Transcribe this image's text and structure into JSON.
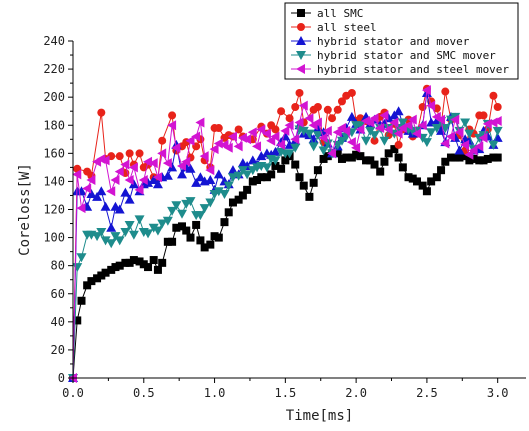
{
  "chart_data": {
    "type": "line",
    "title": "",
    "xlabel": "Time[ms]",
    "ylabel": "Coreloss[W]",
    "xlim": [
      0,
      3.2
    ],
    "ylim": [
      0,
      240
    ],
    "xticks": [
      "0.0",
      "0.5",
      "1.0",
      "1.5",
      "2.0",
      "2.5",
      "3.0"
    ],
    "yticks": [
      "0",
      "20",
      "40",
      "60",
      "80",
      "100",
      "120",
      "140",
      "160",
      "180",
      "200",
      "220",
      "240"
    ],
    "grid": false,
    "legend_position": "top-right",
    "series": [
      {
        "name": "all SMC",
        "color": "#000000",
        "marker": "square",
        "x": [
          0.0,
          0.03,
          0.06,
          0.1,
          0.13,
          0.17,
          0.2,
          0.23,
          0.27,
          0.3,
          0.33,
          0.37,
          0.4,
          0.43,
          0.47,
          0.5,
          0.53,
          0.57,
          0.6,
          0.63,
          0.67,
          0.7,
          0.73,
          0.77,
          0.8,
          0.83,
          0.87,
          0.9,
          0.93,
          0.97,
          1.0,
          1.03,
          1.07,
          1.1,
          1.13,
          1.17,
          1.2,
          1.23,
          1.27,
          1.3,
          1.33,
          1.37,
          1.4,
          1.43,
          1.47,
          1.5,
          1.53,
          1.57,
          1.6,
          1.63,
          1.67,
          1.7,
          1.73,
          1.77,
          1.8,
          1.83,
          1.87,
          1.9,
          1.93,
          1.97,
          2.0,
          2.03,
          2.07,
          2.1,
          2.13,
          2.17,
          2.2,
          2.23,
          2.27,
          2.3,
          2.33,
          2.37,
          2.4,
          2.43,
          2.47,
          2.5,
          2.53,
          2.57,
          2.6,
          2.63,
          2.67,
          2.7,
          2.73,
          2.77,
          2.8,
          2.83,
          2.87,
          2.9,
          2.93,
          2.97,
          3.0
        ],
        "y": [
          0,
          41,
          55,
          66,
          69,
          71,
          73,
          75,
          77,
          79,
          80,
          82,
          82,
          84,
          83,
          81,
          79,
          84,
          77,
          82,
          97,
          97,
          107,
          108,
          105,
          100,
          109,
          98,
          93,
          95,
          101,
          100,
          111,
          118,
          125,
          127,
          130,
          134,
          140,
          141,
          143,
          143,
          145,
          151,
          149,
          155,
          158,
          152,
          143,
          137,
          129,
          139,
          148,
          156,
          158,
          160,
          160,
          156,
          157,
          157,
          159,
          158,
          155,
          155,
          152,
          147,
          154,
          160,
          163,
          157,
          150,
          143,
          142,
          140,
          137,
          133,
          140,
          143,
          148,
          154,
          157,
          157,
          157,
          158,
          155,
          156,
          155,
          155,
          156,
          157,
          157
        ]
      },
      {
        "name": "all steel",
        "color": "#e8231a",
        "marker": "circle",
        "x": [
          0.0,
          0.03,
          0.1,
          0.13,
          0.2,
          0.23,
          0.27,
          0.33,
          0.37,
          0.4,
          0.43,
          0.47,
          0.5,
          0.53,
          0.57,
          0.6,
          0.63,
          0.7,
          0.73,
          0.77,
          0.8,
          0.83,
          0.87,
          0.9,
          0.93,
          0.97,
          1.0,
          1.03,
          1.07,
          1.1,
          1.13,
          1.17,
          1.2,
          1.27,
          1.33,
          1.37,
          1.4,
          1.43,
          1.47,
          1.53,
          1.57,
          1.6,
          1.63,
          1.7,
          1.73,
          1.77,
          1.8,
          1.83,
          1.87,
          1.9,
          1.93,
          1.97,
          2.0,
          2.03,
          2.07,
          2.1,
          2.13,
          2.17,
          2.2,
          2.23,
          2.27,
          2.3,
          2.33,
          2.37,
          2.4,
          2.43,
          2.47,
          2.5,
          2.53,
          2.57,
          2.6,
          2.63,
          2.67,
          2.7,
          2.73,
          2.77,
          2.8,
          2.83,
          2.87,
          2.9,
          2.93,
          2.97,
          3.0
        ],
        "y": [
          0,
          149,
          147,
          144,
          189,
          156,
          158,
          158,
          146,
          160,
          152,
          160,
          150,
          152,
          143,
          142,
          169,
          187,
          162,
          165,
          168,
          157,
          165,
          170,
          155,
          150,
          178,
          178,
          171,
          173,
          172,
          177,
          172,
          170,
          179,
          174,
          180,
          177,
          190,
          185,
          193,
          203,
          182,
          191,
          193,
          168,
          191,
          185,
          191,
          197,
          201,
          203,
          183,
          185,
          183,
          181,
          169,
          186,
          189,
          173,
          181,
          166,
          177,
          184,
          172,
          174,
          193,
          206,
          197,
          192,
          180,
          204,
          184,
          186,
          173,
          162,
          177,
          174,
          187,
          187,
          177,
          201,
          193
        ]
      },
      {
        "name": "hybrid stator and mover",
        "color": "#1414d2",
        "marker": "triangle-up",
        "x": [
          0.0,
          0.03,
          0.06,
          0.1,
          0.13,
          0.17,
          0.2,
          0.23,
          0.27,
          0.3,
          0.33,
          0.37,
          0.4,
          0.43,
          0.47,
          0.5,
          0.53,
          0.57,
          0.6,
          0.63,
          0.67,
          0.7,
          0.73,
          0.77,
          0.8,
          0.83,
          0.87,
          0.9,
          0.93,
          0.97,
          1.0,
          1.03,
          1.07,
          1.1,
          1.13,
          1.17,
          1.2,
          1.23,
          1.27,
          1.3,
          1.33,
          1.37,
          1.4,
          1.43,
          1.47,
          1.5,
          1.53,
          1.57,
          1.6,
          1.63,
          1.67,
          1.7,
          1.73,
          1.77,
          1.8,
          1.83,
          1.87,
          1.9,
          1.93,
          1.97,
          2.0,
          2.03,
          2.07,
          2.1,
          2.13,
          2.17,
          2.2,
          2.23,
          2.27,
          2.3,
          2.33,
          2.37,
          2.4,
          2.43,
          2.47,
          2.5,
          2.53,
          2.57,
          2.6,
          2.63,
          2.67,
          2.7,
          2.73,
          2.77,
          2.8,
          2.83,
          2.87,
          2.9,
          2.93,
          2.97,
          3.0
        ],
        "y": [
          0,
          133,
          133,
          122,
          131,
          129,
          133,
          122,
          107,
          122,
          120,
          132,
          127,
          138,
          133,
          138,
          139,
          141,
          138,
          143,
          144,
          150,
          166,
          145,
          150,
          149,
          139,
          143,
          140,
          141,
          134,
          145,
          140,
          138,
          148,
          145,
          153,
          151,
          155,
          152,
          158,
          160,
          159,
          161,
          168,
          172,
          166,
          169,
          180,
          174,
          173,
          170,
          178,
          175,
          167,
          160,
          165,
          171,
          178,
          186,
          181,
          177,
          186,
          181,
          184,
          180,
          181,
          185,
          187,
          190,
          181,
          176,
          174,
          176,
          180,
          203,
          182,
          183,
          176,
          168,
          186,
          171,
          162,
          170,
          169,
          162,
          163,
          176,
          172,
          166,
          171
        ]
      },
      {
        "name": "hybrid stator and SMC mover",
        "color": "#1e8c8c",
        "marker": "triangle-down",
        "x": [
          0.0,
          0.03,
          0.06,
          0.1,
          0.13,
          0.17,
          0.2,
          0.23,
          0.27,
          0.3,
          0.33,
          0.37,
          0.4,
          0.43,
          0.47,
          0.5,
          0.53,
          0.57,
          0.6,
          0.63,
          0.67,
          0.7,
          0.73,
          0.77,
          0.8,
          0.83,
          0.87,
          0.9,
          0.93,
          0.97,
          1.0,
          1.03,
          1.07,
          1.1,
          1.13,
          1.17,
          1.2,
          1.23,
          1.27,
          1.3,
          1.33,
          1.37,
          1.4,
          1.43,
          1.47,
          1.5,
          1.53,
          1.57,
          1.6,
          1.63,
          1.67,
          1.7,
          1.73,
          1.77,
          1.8,
          1.83,
          1.87,
          1.9,
          1.93,
          1.97,
          2.0,
          2.03,
          2.07,
          2.1,
          2.13,
          2.17,
          2.2,
          2.23,
          2.27,
          2.3,
          2.33,
          2.37,
          2.4,
          2.43,
          2.47,
          2.5,
          2.53,
          2.57,
          2.6,
          2.63,
          2.67,
          2.7,
          2.73,
          2.77,
          2.8,
          2.83,
          2.87,
          2.9,
          2.93,
          2.97,
          3.0
        ],
        "y": [
          0,
          79,
          86,
          102,
          102,
          101,
          104,
          98,
          96,
          101,
          98,
          104,
          109,
          102,
          113,
          104,
          103,
          107,
          105,
          110,
          112,
          119,
          123,
          117,
          124,
          126,
          116,
          116,
          121,
          125,
          131,
          133,
          131,
          137,
          143,
          144,
          148,
          145,
          148,
          150,
          151,
          150,
          156,
          155,
          161,
          160,
          160,
          164,
          177,
          176,
          174,
          165,
          173,
          162,
          167,
          160,
          166,
          169,
          172,
          175,
          180,
          180,
          169,
          176,
          173,
          178,
          169,
          178,
          174,
          178,
          182,
          177,
          176,
          176,
          171,
          168,
          175,
          178,
          183,
          178,
          184,
          186,
          176,
          182,
          174,
          163,
          171,
          173,
          181,
          166,
          176
        ]
      },
      {
        "name": "hybrid stator and steel mover",
        "color": "#d214d2",
        "marker": "triangle-left",
        "x": [
          0.0,
          0.03,
          0.06,
          0.1,
          0.13,
          0.17,
          0.2,
          0.23,
          0.27,
          0.3,
          0.33,
          0.37,
          0.4,
          0.43,
          0.47,
          0.5,
          0.53,
          0.57,
          0.6,
          0.63,
          0.67,
          0.7,
          0.73,
          0.77,
          0.8,
          0.83,
          0.87,
          0.9,
          0.93,
          0.97,
          1.0,
          1.03,
          1.07,
          1.1,
          1.13,
          1.17,
          1.2,
          1.23,
          1.27,
          1.3,
          1.33,
          1.37,
          1.4,
          1.43,
          1.47,
          1.5,
          1.53,
          1.57,
          1.6,
          1.63,
          1.67,
          1.7,
          1.73,
          1.77,
          1.8,
          1.83,
          1.87,
          1.9,
          1.93,
          1.97,
          2.0,
          2.03,
          2.07,
          2.1,
          2.13,
          2.17,
          2.2,
          2.23,
          2.27,
          2.3,
          2.33,
          2.37,
          2.4,
          2.43,
          2.47,
          2.5,
          2.53,
          2.57,
          2.6,
          2.63,
          2.67,
          2.7,
          2.73,
          2.77,
          2.8,
          2.83,
          2.87,
          2.9,
          2.93,
          2.97,
          3.0
        ],
        "y": [
          0,
          145,
          121,
          135,
          141,
          154,
          156,
          155,
          133,
          141,
          147,
          152,
          141,
          150,
          134,
          141,
          154,
          153,
          143,
          160,
          153,
          180,
          164,
          151,
          154,
          169,
          172,
          182,
          158,
          148,
          163,
          167,
          166,
          164,
          172,
          165,
          171,
          170,
          175,
          165,
          177,
          174,
          169,
          172,
          166,
          176,
          180,
          170,
          182,
          194,
          185,
          180,
          182,
          171,
          176,
          160,
          175,
          178,
          176,
          168,
          164,
          177,
          183,
          182,
          185,
          178,
          187,
          177,
          182,
          174,
          178,
          180,
          184,
          174,
          180,
          205,
          194,
          186,
          184,
          167,
          172,
          184,
          175,
          166,
          159,
          162,
          165,
          171,
          181,
          182,
          183
        ]
      }
    ]
  }
}
